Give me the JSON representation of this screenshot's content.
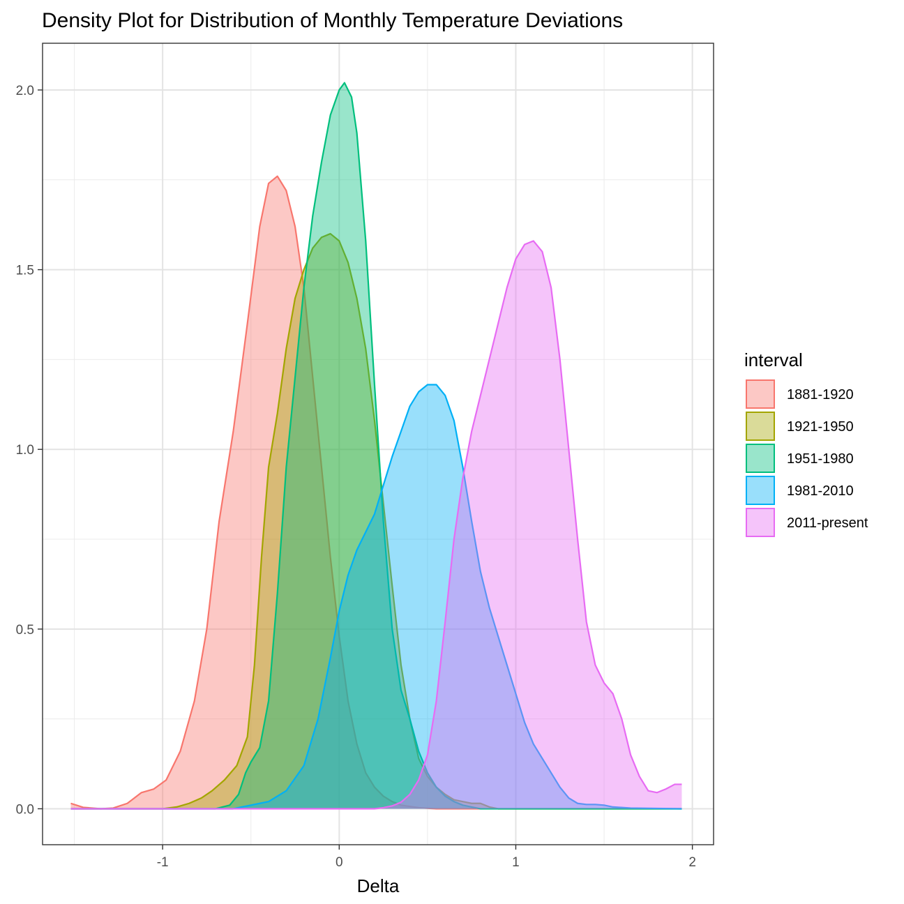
{
  "chart_data": {
    "type": "area",
    "subtype": "density",
    "title": "Density Plot for Distribution of Monthly Temperature Deviations",
    "xlabel": "Delta",
    "ylabel": "",
    "xlim": [
      -1.68,
      2.12
    ],
    "ylim": [
      -0.1,
      2.13
    ],
    "x_ticks": [
      -1,
      0,
      1,
      2
    ],
    "x_tick_labels": [
      "-1",
      "0",
      "1",
      "2"
    ],
    "y_ticks": [
      0.0,
      0.5,
      1.0,
      1.5,
      2.0
    ],
    "y_tick_labels": [
      "0.0",
      "0.5",
      "1.0",
      "1.5",
      "2.0"
    ],
    "grid": true,
    "legend": {
      "title": "interval",
      "position": "right"
    },
    "series": [
      {
        "name": "1881-1920",
        "color": "#F8766D",
        "points": [
          [
            -1.52,
            0.015
          ],
          [
            -1.45,
            0.004
          ],
          [
            -1.35,
            0.0
          ],
          [
            -1.28,
            0.002
          ],
          [
            -1.2,
            0.015
          ],
          [
            -1.12,
            0.045
          ],
          [
            -1.05,
            0.055
          ],
          [
            -0.98,
            0.08
          ],
          [
            -0.9,
            0.16
          ],
          [
            -0.82,
            0.3
          ],
          [
            -0.75,
            0.5
          ],
          [
            -0.68,
            0.8
          ],
          [
            -0.6,
            1.05
          ],
          [
            -0.52,
            1.35
          ],
          [
            -0.45,
            1.62
          ],
          [
            -0.4,
            1.74
          ],
          [
            -0.35,
            1.76
          ],
          [
            -0.3,
            1.72
          ],
          [
            -0.25,
            1.62
          ],
          [
            -0.2,
            1.45
          ],
          [
            -0.15,
            1.2
          ],
          [
            -0.1,
            0.95
          ],
          [
            -0.05,
            0.7
          ],
          [
            0.0,
            0.48
          ],
          [
            0.05,
            0.3
          ],
          [
            0.1,
            0.18
          ],
          [
            0.15,
            0.1
          ],
          [
            0.2,
            0.06
          ],
          [
            0.25,
            0.035
          ],
          [
            0.3,
            0.02
          ],
          [
            0.35,
            0.01
          ],
          [
            0.45,
            0.003
          ],
          [
            0.55,
            0.0
          ],
          [
            0.7,
            0.0
          ],
          [
            0.8,
            0.0
          ]
        ]
      },
      {
        "name": "1921-1950",
        "color": "#A3A500",
        "points": [
          [
            -1.52,
            0.0
          ],
          [
            -1.0,
            0.0
          ],
          [
            -0.92,
            0.005
          ],
          [
            -0.85,
            0.015
          ],
          [
            -0.78,
            0.03
          ],
          [
            -0.72,
            0.05
          ],
          [
            -0.65,
            0.08
          ],
          [
            -0.58,
            0.12
          ],
          [
            -0.52,
            0.2
          ],
          [
            -0.48,
            0.4
          ],
          [
            -0.44,
            0.7
          ],
          [
            -0.4,
            0.95
          ],
          [
            -0.35,
            1.1
          ],
          [
            -0.3,
            1.28
          ],
          [
            -0.25,
            1.42
          ],
          [
            -0.2,
            1.5
          ],
          [
            -0.15,
            1.56
          ],
          [
            -0.1,
            1.59
          ],
          [
            -0.05,
            1.6
          ],
          [
            0.0,
            1.58
          ],
          [
            0.05,
            1.52
          ],
          [
            0.1,
            1.42
          ],
          [
            0.15,
            1.28
          ],
          [
            0.2,
            1.08
          ],
          [
            0.25,
            0.85
          ],
          [
            0.3,
            0.62
          ],
          [
            0.35,
            0.4
          ],
          [
            0.4,
            0.25
          ],
          [
            0.45,
            0.14
          ],
          [
            0.5,
            0.09
          ],
          [
            0.55,
            0.06
          ],
          [
            0.6,
            0.04
          ],
          [
            0.65,
            0.025
          ],
          [
            0.7,
            0.02
          ],
          [
            0.75,
            0.015
          ],
          [
            0.8,
            0.015
          ],
          [
            0.85,
            0.005
          ],
          [
            0.9,
            0.0
          ],
          [
            1.94,
            0.0
          ]
        ]
      },
      {
        "name": "1951-1980",
        "color": "#00BF7D",
        "points": [
          [
            -1.52,
            0.0
          ],
          [
            -0.7,
            0.0
          ],
          [
            -0.62,
            0.01
          ],
          [
            -0.57,
            0.04
          ],
          [
            -0.53,
            0.1
          ],
          [
            -0.5,
            0.13
          ],
          [
            -0.45,
            0.17
          ],
          [
            -0.4,
            0.3
          ],
          [
            -0.35,
            0.6
          ],
          [
            -0.3,
            0.95
          ],
          [
            -0.25,
            1.2
          ],
          [
            -0.2,
            1.45
          ],
          [
            -0.15,
            1.65
          ],
          [
            -0.1,
            1.8
          ],
          [
            -0.05,
            1.93
          ],
          [
            0.0,
            2.0
          ],
          [
            0.03,
            2.02
          ],
          [
            0.07,
            1.98
          ],
          [
            0.1,
            1.88
          ],
          [
            0.15,
            1.58
          ],
          [
            0.2,
            1.18
          ],
          [
            0.25,
            0.8
          ],
          [
            0.3,
            0.5
          ],
          [
            0.35,
            0.33
          ],
          [
            0.4,
            0.25
          ],
          [
            0.45,
            0.16
          ],
          [
            0.5,
            0.1
          ],
          [
            0.55,
            0.06
          ],
          [
            0.6,
            0.035
          ],
          [
            0.65,
            0.02
          ],
          [
            0.7,
            0.01
          ],
          [
            0.75,
            0.005
          ],
          [
            0.8,
            0.0
          ],
          [
            1.94,
            0.0
          ]
        ]
      },
      {
        "name": "1981-2010",
        "color": "#00B0F6",
        "points": [
          [
            -1.52,
            0.0
          ],
          [
            -0.6,
            0.0
          ],
          [
            -0.5,
            0.01
          ],
          [
            -0.4,
            0.02
          ],
          [
            -0.3,
            0.05
          ],
          [
            -0.2,
            0.12
          ],
          [
            -0.12,
            0.25
          ],
          [
            -0.05,
            0.42
          ],
          [
            0.0,
            0.55
          ],
          [
            0.05,
            0.65
          ],
          [
            0.1,
            0.72
          ],
          [
            0.15,
            0.77
          ],
          [
            0.2,
            0.82
          ],
          [
            0.25,
            0.9
          ],
          [
            0.3,
            0.98
          ],
          [
            0.35,
            1.05
          ],
          [
            0.4,
            1.12
          ],
          [
            0.45,
            1.16
          ],
          [
            0.5,
            1.18
          ],
          [
            0.55,
            1.18
          ],
          [
            0.6,
            1.15
          ],
          [
            0.65,
            1.08
          ],
          [
            0.7,
            0.95
          ],
          [
            0.75,
            0.8
          ],
          [
            0.8,
            0.66
          ],
          [
            0.85,
            0.56
          ],
          [
            0.9,
            0.48
          ],
          [
            0.95,
            0.4
          ],
          [
            1.0,
            0.32
          ],
          [
            1.05,
            0.24
          ],
          [
            1.1,
            0.18
          ],
          [
            1.15,
            0.14
          ],
          [
            1.2,
            0.1
          ],
          [
            1.25,
            0.06
          ],
          [
            1.3,
            0.03
          ],
          [
            1.35,
            0.015
          ],
          [
            1.4,
            0.012
          ],
          [
            1.45,
            0.012
          ],
          [
            1.5,
            0.01
          ],
          [
            1.55,
            0.005
          ],
          [
            1.65,
            0.002
          ],
          [
            1.94,
            0.0
          ]
        ]
      },
      {
        "name": "2011-present",
        "color": "#E76BF3",
        "points": [
          [
            -1.52,
            0.0
          ],
          [
            0.2,
            0.0
          ],
          [
            0.25,
            0.003
          ],
          [
            0.3,
            0.008
          ],
          [
            0.35,
            0.018
          ],
          [
            0.4,
            0.04
          ],
          [
            0.45,
            0.08
          ],
          [
            0.5,
            0.15
          ],
          [
            0.55,
            0.3
          ],
          [
            0.6,
            0.52
          ],
          [
            0.65,
            0.75
          ],
          [
            0.7,
            0.92
          ],
          [
            0.75,
            1.05
          ],
          [
            0.8,
            1.15
          ],
          [
            0.85,
            1.25
          ],
          [
            0.9,
            1.35
          ],
          [
            0.95,
            1.45
          ],
          [
            1.0,
            1.53
          ],
          [
            1.05,
            1.57
          ],
          [
            1.1,
            1.58
          ],
          [
            1.15,
            1.55
          ],
          [
            1.2,
            1.45
          ],
          [
            1.25,
            1.25
          ],
          [
            1.3,
            1.0
          ],
          [
            1.35,
            0.75
          ],
          [
            1.4,
            0.52
          ],
          [
            1.45,
            0.4
          ],
          [
            1.5,
            0.35
          ],
          [
            1.55,
            0.32
          ],
          [
            1.6,
            0.25
          ],
          [
            1.65,
            0.15
          ],
          [
            1.7,
            0.09
          ],
          [
            1.75,
            0.05
          ],
          [
            1.8,
            0.045
          ],
          [
            1.85,
            0.055
          ],
          [
            1.9,
            0.068
          ],
          [
            1.94,
            0.068
          ]
        ]
      }
    ]
  }
}
